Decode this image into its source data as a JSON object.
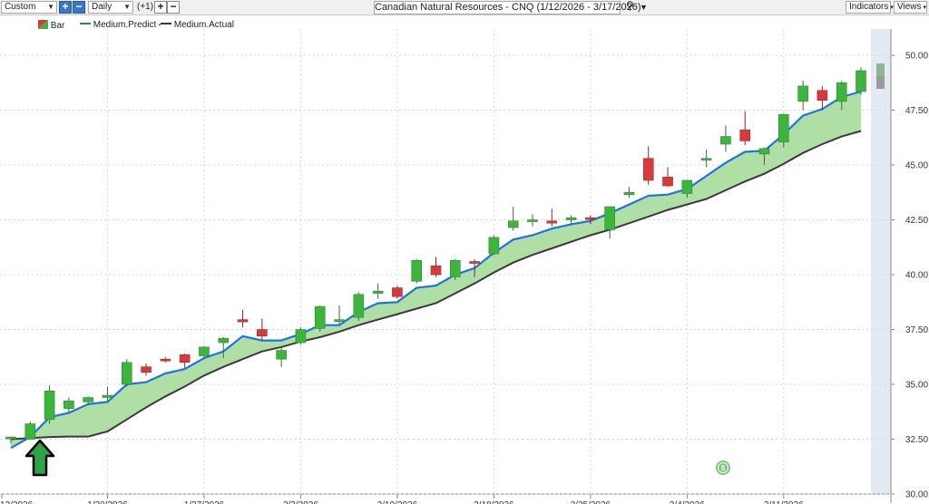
{
  "toolbar": {
    "range_select": "Custom",
    "period_select": "Daily",
    "offset_label": "(+1)",
    "chart_title": "Canadian Natural Resources - CNQ (1/12/2026 - 3/17/2026)",
    "indicators_label": "Indicators",
    "views_label": "Views"
  },
  "legend": {
    "bar_label": "Bar",
    "predict_label": "Medium.Predict",
    "actual_label": "Medium.Actual"
  },
  "colors": {
    "up": "#3db53d",
    "down": "#d63b3b",
    "predict": "#1a73e8",
    "actual": "#3a3a3a",
    "band": "#a6dc9a",
    "forecast_zone": "#e4eaf3"
  },
  "chart_data": {
    "type": "line",
    "x": [
      "1/12/2026",
      "1/13/2026",
      "1/14/2026",
      "1/15/2026",
      "1/16/2026",
      "1/20/2026",
      "1/21/2026",
      "1/22/2026",
      "1/23/2026",
      "1/26/2026",
      "1/27/2026",
      "1/28/2026",
      "1/29/2026",
      "1/30/2026",
      "2/2/2026",
      "2/3/2026",
      "2/4/2026",
      "2/5/2026",
      "2/6/2026",
      "2/9/2026",
      "2/10/2026",
      "2/11/2026",
      "2/12/2026",
      "2/13/2026",
      "2/17/2026",
      "2/18/2026",
      "2/19/2026",
      "2/20/2026",
      "2/23/2026",
      "2/24/2026",
      "2/25/2026",
      "2/26/2026",
      "2/27/2026",
      "3/2/2026",
      "3/3/2026",
      "3/4/2026",
      "3/5/2026",
      "3/6/2026",
      "3/9/2026",
      "3/10/2026",
      "3/11/2026",
      "3/12/2026",
      "3/13/2026",
      "3/16/2026",
      "3/17/2026"
    ],
    "x_tick_labels": [
      "12/2026",
      "1/20/2026",
      "1/27/2026",
      "2/3/2026",
      "2/10/2026",
      "2/18/2026",
      "2/25/2026",
      "3/4/2026",
      "3/11/2026"
    ],
    "y_ticks": [
      "30.00",
      "32.50",
      "35.00",
      "37.50",
      "40.00",
      "42.50",
      "45.00",
      "47.50",
      "50.00"
    ],
    "ylim": [
      30,
      51.2
    ],
    "series": [
      {
        "name": "Medium.Predict",
        "values": [
          32.1,
          32.6,
          33.5,
          33.7,
          34.1,
          34.2,
          35.0,
          35.1,
          35.5,
          35.7,
          36.2,
          36.5,
          37.2,
          37.0,
          37.0,
          37.3,
          37.7,
          37.7,
          38.3,
          38.7,
          38.75,
          39.4,
          39.5,
          40.0,
          40.3,
          41.0,
          41.6,
          41.8,
          42.1,
          42.3,
          42.45,
          42.8,
          43.2,
          43.6,
          43.65,
          43.9,
          44.5,
          45.1,
          45.6,
          45.65,
          46.4,
          47.25,
          47.55,
          48.1,
          48.35
        ]
      },
      {
        "name": "Medium.Actual",
        "values": [
          32.5,
          32.55,
          32.6,
          32.62,
          32.62,
          32.85,
          33.4,
          33.95,
          34.45,
          34.9,
          35.4,
          35.8,
          36.15,
          36.5,
          36.7,
          36.95,
          37.15,
          37.4,
          37.7,
          37.95,
          38.2,
          38.45,
          38.7,
          39.15,
          39.6,
          40.1,
          40.55,
          40.9,
          41.2,
          41.5,
          41.8,
          42.05,
          42.35,
          42.65,
          42.95,
          43.2,
          43.45,
          43.85,
          44.25,
          44.6,
          45.05,
          45.55,
          45.95,
          46.3,
          46.55
        ]
      },
      {
        "name": "Bar",
        "ohlc": [
          [
            32.55,
            32.6,
            32.3,
            32.6
          ],
          [
            32.5,
            33.3,
            32.5,
            33.2
          ],
          [
            33.4,
            34.95,
            33.2,
            34.7
          ],
          [
            33.9,
            34.4,
            33.7,
            34.25
          ],
          [
            34.2,
            34.45,
            34.05,
            34.4
          ],
          [
            34.4,
            34.9,
            34.2,
            34.5
          ],
          [
            35.0,
            36.15,
            34.9,
            36.0
          ],
          [
            35.8,
            35.95,
            35.4,
            35.55
          ],
          [
            36.15,
            36.25,
            36.0,
            36.1
          ],
          [
            36.35,
            36.4,
            35.75,
            36.0
          ],
          [
            36.3,
            36.75,
            36.2,
            36.7
          ],
          [
            36.9,
            37.15,
            36.2,
            37.1
          ],
          [
            37.95,
            38.4,
            37.6,
            37.85
          ],
          [
            37.5,
            38.0,
            37.0,
            37.2
          ],
          [
            36.15,
            36.7,
            35.8,
            36.55
          ],
          [
            36.9,
            37.6,
            36.8,
            37.5
          ],
          [
            37.55,
            38.6,
            37.4,
            38.55
          ],
          [
            37.95,
            38.6,
            37.7,
            37.95
          ],
          [
            38.05,
            39.2,
            37.9,
            39.1
          ],
          [
            39.15,
            39.6,
            38.9,
            39.25
          ],
          [
            39.4,
            39.5,
            38.9,
            39.0
          ],
          [
            39.7,
            40.7,
            39.6,
            40.65
          ],
          [
            40.4,
            40.8,
            39.9,
            40.0
          ],
          [
            39.9,
            40.7,
            39.75,
            40.65
          ],
          [
            40.6,
            40.7,
            39.9,
            40.55
          ],
          [
            40.95,
            41.8,
            40.9,
            41.7
          ],
          [
            42.15,
            43.1,
            42.0,
            42.45
          ],
          [
            42.45,
            42.75,
            42.2,
            42.5
          ],
          [
            42.45,
            43.0,
            42.2,
            42.35
          ],
          [
            42.5,
            42.7,
            42.3,
            42.6
          ],
          [
            42.6,
            42.7,
            42.3,
            42.55
          ],
          [
            42.05,
            43.1,
            41.65,
            43.1
          ],
          [
            43.65,
            44.0,
            43.5,
            43.75
          ],
          [
            45.3,
            45.85,
            44.1,
            44.3
          ],
          [
            44.45,
            44.9,
            44.0,
            44.05
          ],
          [
            43.7,
            44.3,
            43.5,
            44.3
          ],
          [
            45.3,
            45.7,
            44.9,
            45.3
          ],
          [
            45.95,
            46.8,
            45.6,
            46.3
          ],
          [
            46.6,
            47.45,
            45.9,
            46.1
          ],
          [
            45.5,
            45.8,
            45.0,
            45.75
          ],
          [
            46.05,
            47.35,
            45.8,
            47.3
          ],
          [
            47.9,
            48.85,
            47.5,
            48.6
          ],
          [
            48.4,
            48.6,
            47.5,
            47.95
          ],
          [
            47.9,
            48.85,
            47.5,
            48.75
          ],
          [
            48.35,
            49.45,
            48.2,
            49.3
          ]
        ]
      }
    ]
  }
}
